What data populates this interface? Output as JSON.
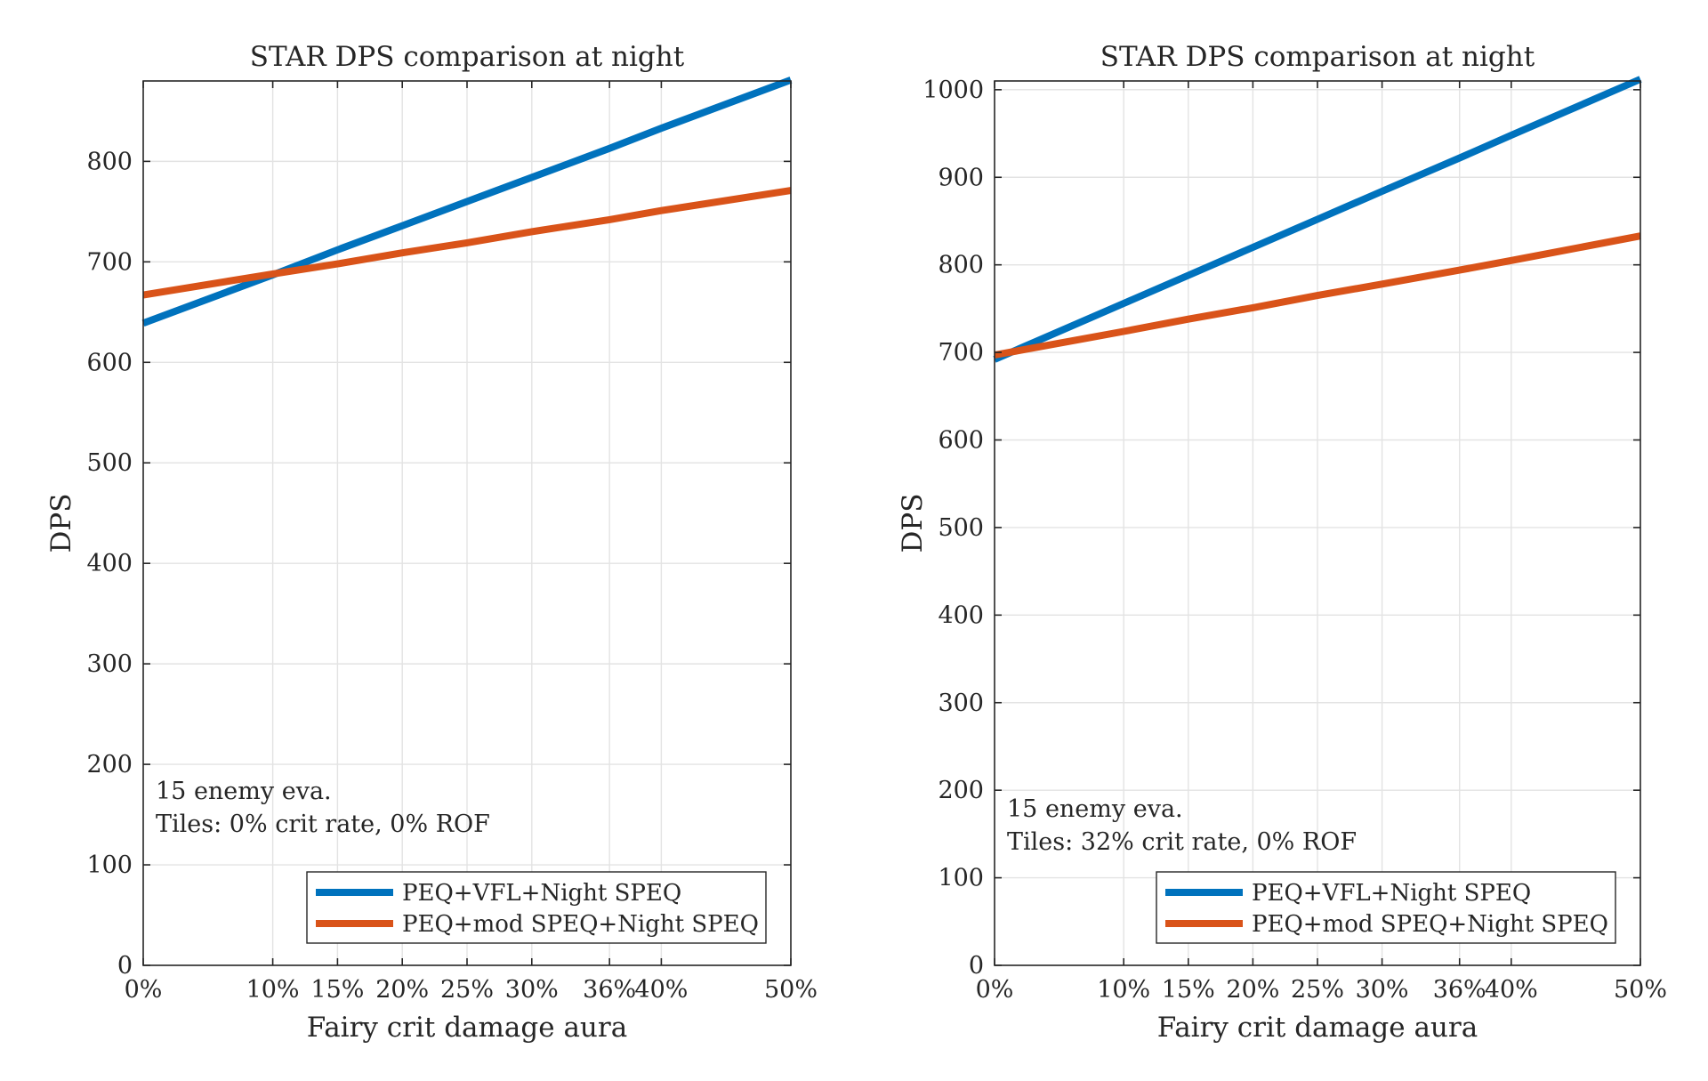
{
  "chart_data": [
    {
      "type": "line",
      "title": "STAR DPS comparison at night",
      "xlabel": "Fairy crit damage aura",
      "ylabel": "DPS",
      "xlim": [
        0,
        50
      ],
      "ylim": [
        0,
        880
      ],
      "xticks": [
        0,
        10,
        15,
        20,
        25,
        30,
        36,
        40,
        50
      ],
      "xtick_labels": [
        "0%",
        "10%",
        "15%",
        "20%",
        "25%",
        "30%",
        "36%",
        "40%",
        "50%"
      ],
      "yticks": [
        0,
        100,
        200,
        300,
        400,
        500,
        600,
        700,
        800
      ],
      "ytick_labels": [
        "0",
        "100",
        "200",
        "300",
        "400",
        "500",
        "600",
        "700",
        "800"
      ],
      "grid": true,
      "legend_location": "bottom-right",
      "annotations": [
        "15 enemy eva.",
        "Tiles: 0% crit rate, 0% ROF"
      ],
      "series": [
        {
          "name": "PEQ+VFL+Night SPEQ",
          "color": "#0072bd",
          "x": [
            0,
            10,
            15,
            20,
            25,
            30,
            36,
            40,
            50
          ],
          "y": [
            639,
            687,
            712,
            736,
            760,
            784,
            813,
            833,
            881
          ]
        },
        {
          "name": "PEQ+mod SPEQ+Night SPEQ",
          "color": "#d95319",
          "x": [
            0,
            10,
            15,
            20,
            25,
            30,
            36,
            40,
            50
          ],
          "y": [
            667,
            688,
            698,
            709,
            719,
            730,
            742,
            751,
            771
          ]
        }
      ]
    },
    {
      "type": "line",
      "title": "STAR DPS comparison at night",
      "xlabel": "Fairy crit damage aura",
      "ylabel": "DPS",
      "xlim": [
        0,
        50
      ],
      "ylim": [
        0,
        1010
      ],
      "xticks": [
        0,
        10,
        15,
        20,
        25,
        30,
        36,
        40,
        50
      ],
      "xtick_labels": [
        "0%",
        "10%",
        "15%",
        "20%",
        "25%",
        "30%",
        "36%",
        "40%",
        "50%"
      ],
      "yticks": [
        0,
        100,
        200,
        300,
        400,
        500,
        600,
        700,
        800,
        900,
        1000
      ],
      "ytick_labels": [
        "0",
        "100",
        "200",
        "300",
        "400",
        "500",
        "600",
        "700",
        "800",
        "900",
        "1000"
      ],
      "grid": true,
      "legend_location": "bottom-right",
      "annotations": [
        "15 enemy eva.",
        "Tiles: 32% crit rate, 0% ROF"
      ],
      "series": [
        {
          "name": "PEQ+VFL+Night SPEQ",
          "color": "#0072bd",
          "x": [
            0,
            10,
            15,
            20,
            25,
            30,
            36,
            40,
            50
          ],
          "y": [
            692,
            756,
            788,
            820,
            852,
            884,
            922,
            948,
            1012
          ]
        },
        {
          "name": "PEQ+mod SPEQ+Night SPEQ",
          "color": "#d95319",
          "x": [
            0,
            10,
            15,
            20,
            25,
            30,
            36,
            40,
            50
          ],
          "y": [
            697,
            724,
            738,
            751,
            765,
            778,
            794,
            805,
            833
          ]
        }
      ]
    }
  ]
}
